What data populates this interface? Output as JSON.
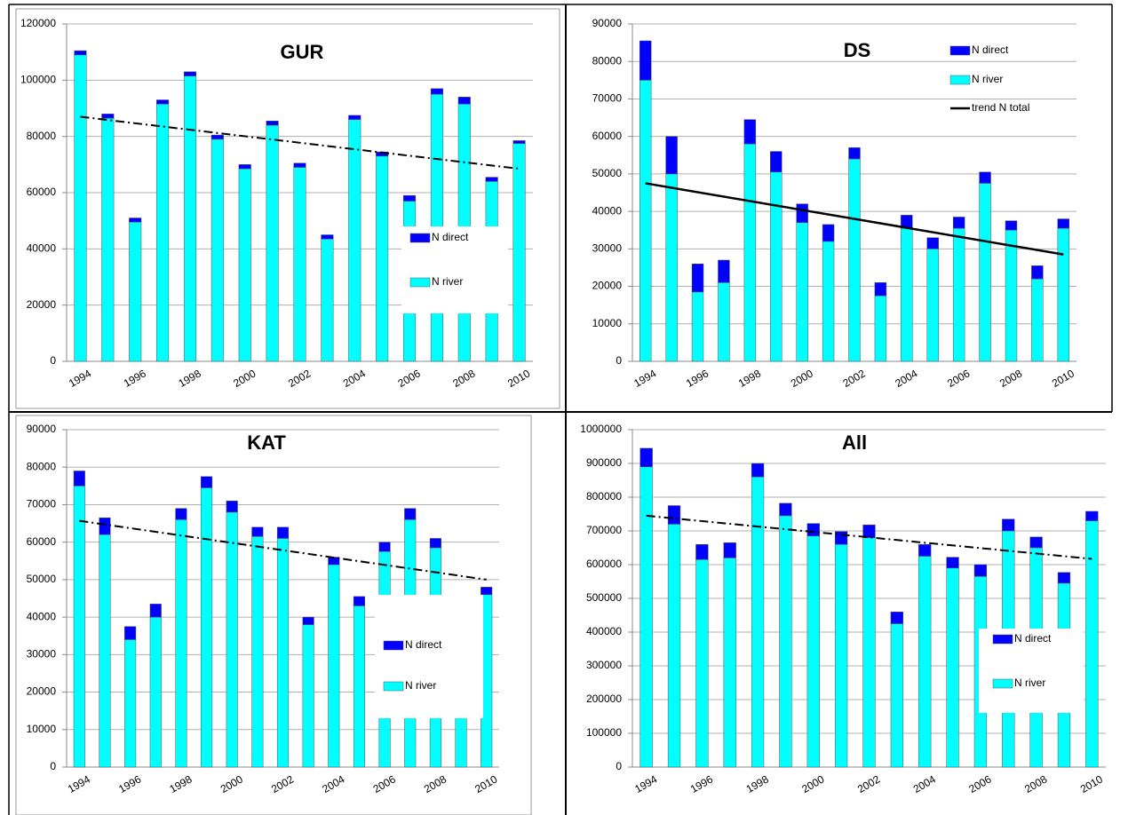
{
  "chart_data": [
    {
      "type": "stacked-bar",
      "title": "GUR",
      "categories": [
        "1994",
        null,
        "1996",
        null,
        "1998",
        null,
        "2000",
        null,
        "2002",
        null,
        "2004",
        null,
        "2006",
        null,
        "2008",
        null,
        "2010"
      ],
      "series": [
        {
          "name": "N river",
          "color": "#00ffff",
          "values": [
            109000,
            86500,
            49500,
            91500,
            101500,
            79000,
            68500,
            84000,
            69000,
            43500,
            86000,
            73000,
            57000,
            95000,
            91500,
            64000,
            77500
          ]
        },
        {
          "name": "N direct",
          "color": "#0000ff",
          "values": [
            1500,
            1500,
            1500,
            1500,
            1500,
            1500,
            1500,
            1500,
            1500,
            1500,
            1500,
            1500,
            2000,
            2000,
            2500,
            1500,
            1000
          ]
        }
      ],
      "trend": {
        "values": [
          87000,
          68500
        ],
        "dash": "dashdot"
      },
      "ylim": [
        0,
        120000
      ],
      "yticks": [
        0,
        20000,
        40000,
        60000,
        80000,
        100000,
        120000
      ],
      "grid": true
    },
    {
      "type": "stacked-bar",
      "title": "DS",
      "categories": [
        "1994",
        null,
        "1996",
        null,
        "1998",
        null,
        "2000",
        null,
        "2002",
        null,
        "2004",
        null,
        "2006",
        null,
        "2008",
        null,
        "2010"
      ],
      "series": [
        {
          "name": "N river",
          "color": "#00ffff",
          "values": [
            75000,
            50000,
            18500,
            21000,
            58000,
            50500,
            37000,
            32000,
            54000,
            17500,
            35500,
            30000,
            35500,
            47500,
            35000,
            22000,
            35500
          ]
        },
        {
          "name": "N direct",
          "color": "#0000ff",
          "values": [
            10500,
            10000,
            7500,
            6000,
            6500,
            5500,
            5000,
            4500,
            3000,
            3500,
            3500,
            3000,
            3000,
            3000,
            2500,
            3500,
            2500
          ]
        }
      ],
      "trend": {
        "name": "trend N total",
        "values": [
          47500,
          28500
        ],
        "dash": "solid"
      },
      "ylim": [
        0,
        90000
      ],
      "yticks": [
        0,
        10000,
        20000,
        30000,
        40000,
        50000,
        60000,
        70000,
        80000,
        90000
      ],
      "grid": true
    },
    {
      "type": "stacked-bar",
      "title": "KAT",
      "categories": [
        "1994",
        null,
        "1996",
        null,
        "1998",
        null,
        "2000",
        null,
        "2002",
        null,
        "2004",
        null,
        "2006",
        null,
        "2008",
        null,
        "2010"
      ],
      "series": [
        {
          "name": "N river",
          "color": "#00ffff",
          "values": [
            75000,
            62000,
            34000,
            40000,
            66000,
            74500,
            68000,
            61500,
            61000,
            38000,
            54000,
            43000,
            57500,
            66000,
            58500,
            40500,
            46000
          ]
        },
        {
          "name": "N direct",
          "color": "#0000ff",
          "values": [
            4000,
            4500,
            3500,
            3500,
            3000,
            3000,
            3000,
            2500,
            3000,
            2000,
            2000,
            2500,
            2500,
            3000,
            2500,
            2500,
            2000
          ]
        }
      ],
      "trend": {
        "values": [
          65700,
          50000
        ],
        "dash": "dashdot"
      },
      "ylim": [
        0,
        90000
      ],
      "yticks": [
        0,
        10000,
        20000,
        30000,
        40000,
        50000,
        60000,
        70000,
        80000,
        90000
      ],
      "grid": true
    },
    {
      "type": "stacked-bar",
      "title": "All",
      "categories": [
        "1994",
        null,
        "1996",
        null,
        "1998",
        null,
        "2000",
        null,
        "2002",
        null,
        "2004",
        null,
        "2006",
        null,
        "2008",
        null,
        "2010"
      ],
      "series": [
        {
          "name": "N river",
          "color": "#00ffff",
          "values": [
            890000,
            720000,
            615000,
            620000,
            860000,
            745000,
            685000,
            660000,
            680000,
            425000,
            625000,
            590000,
            565000,
            700000,
            650000,
            545000,
            730000
          ]
        },
        {
          "name": "N direct",
          "color": "#0000ff",
          "values": [
            55000,
            55000,
            45000,
            45000,
            40000,
            37000,
            37000,
            38000,
            38000,
            35000,
            35000,
            32000,
            35000,
            35000,
            32000,
            32000,
            28000
          ]
        }
      ],
      "trend": {
        "values": [
          745000,
          617000
        ],
        "dash": "dashdot"
      },
      "ylim": [
        0,
        1000000
      ],
      "yticks": [
        0,
        100000,
        200000,
        300000,
        400000,
        500000,
        600000,
        700000,
        800000,
        900000,
        1000000
      ],
      "grid": true
    }
  ]
}
